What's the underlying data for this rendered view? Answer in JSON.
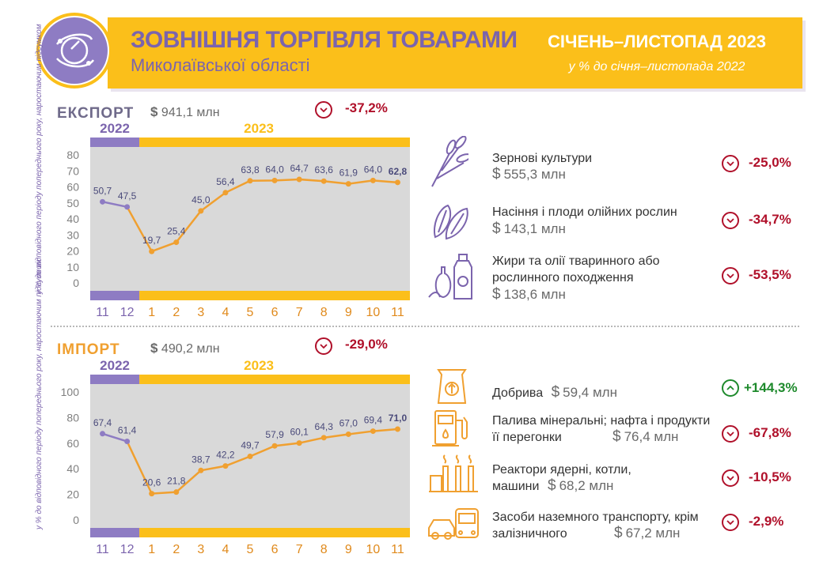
{
  "header": {
    "title": "ЗОВНІШНЯ ТОРГІВЛЯ ТОВАРАМИ",
    "subtitle": "Миколаївської області",
    "period": "СІЧЕНЬ–ЛИСТОПАД 2023",
    "comparison": "у % до січня–листопада 2022",
    "logo_icon": "globe-icon",
    "colors": {
      "accent": "#fbbf1a",
      "brand": "#7b64ad",
      "line": "#f0a030",
      "decline": "#b0102a",
      "growth": "#1e8a2c"
    }
  },
  "export": {
    "title": "ЕКСПОРТ",
    "total_currency": "$",
    "total": "941,1 млн",
    "change": "-37,2%",
    "change_direction": "down",
    "items": [
      {
        "name": "Зернові культури",
        "value": "555,3 млн",
        "change": "-25,0%",
        "direction": "down",
        "icon": "wheat-icon"
      },
      {
        "name": "Насіння і плоди олійних рослин",
        "value": "143,1 млн",
        "change": "-34,7%",
        "direction": "down",
        "icon": "sunflower-seeds-icon"
      },
      {
        "name": "Жири та олії тваринного або рослинного походження",
        "value": "138,6 млн",
        "change": "-53,5%",
        "direction": "down",
        "icon": "oil-bottles-icon"
      }
    ]
  },
  "import": {
    "title": "ІМПОРТ",
    "total_currency": "$",
    "total": "490,2 млн",
    "change": "-29,0%",
    "change_direction": "down",
    "items": [
      {
        "name": "Добрива",
        "value": "59,4 млн",
        "change": "+144,3%",
        "direction": "up",
        "icon": "fertilizer-bag-icon"
      },
      {
        "name": "Палива мінеральні; нафта і продукти її перегонки",
        "value": "76,4 млн",
        "change": "-67,8%",
        "direction": "down",
        "icon": "fuel-pump-icon"
      },
      {
        "name": "Реактори ядерні, котли, машини",
        "value": "68,2 млн",
        "change": "-10,5%",
        "direction": "down",
        "icon": "factory-icon"
      },
      {
        "name": "Засоби наземного транспорту, крім залізничного",
        "value": "67,2 млн",
        "change": "-2,9%",
        "direction": "down",
        "icon": "vehicles-icon"
      }
    ]
  },
  "chart_data": [
    {
      "type": "line",
      "ylabel": "у % до відповідного періоду попереднього року, наростаючим підсумком",
      "ylim": [
        0,
        80
      ],
      "yticks": [
        0,
        10,
        20,
        30,
        40,
        50,
        60,
        70,
        80
      ],
      "categories": [
        "11",
        "12",
        "1",
        "2",
        "3",
        "4",
        "5",
        "6",
        "7",
        "8",
        "9",
        "10",
        "11"
      ],
      "year_labels": [
        "2022",
        "2023"
      ],
      "values": [
        50.7,
        47.5,
        19.7,
        25.4,
        45.0,
        56.4,
        63.8,
        64.0,
        64.7,
        63.6,
        61.9,
        64.0,
        62.8
      ],
      "labels": [
        "50,7",
        "47,5",
        "19,7",
        "25,4",
        "45,0",
        "56,4",
        "63,8",
        "64,0",
        "64,7",
        "63,6",
        "61,9",
        "64,0",
        "62,8"
      ],
      "grid": false
    },
    {
      "type": "line",
      "ylabel": "у % до відповідного періоду попереднього року, наростаючим підсумком",
      "ylim": [
        0,
        100
      ],
      "yticks": [
        0,
        20,
        40,
        60,
        80,
        100
      ],
      "categories": [
        "11",
        "12",
        "1",
        "2",
        "3",
        "4",
        "5",
        "6",
        "7",
        "8",
        "9",
        "10",
        "11"
      ],
      "year_labels": [
        "2022",
        "2023"
      ],
      "values": [
        67.4,
        61.4,
        20.6,
        21.8,
        38.7,
        42.2,
        49.7,
        57.9,
        60.1,
        64.3,
        67.0,
        69.4,
        71.0
      ],
      "labels": [
        "67,4",
        "61,4",
        "20,6",
        "21,8",
        "38,7",
        "42,2",
        "49,7",
        "57,9",
        "60,1",
        "64,3",
        "67,0",
        "69,4",
        "71,0"
      ],
      "grid": false
    }
  ]
}
